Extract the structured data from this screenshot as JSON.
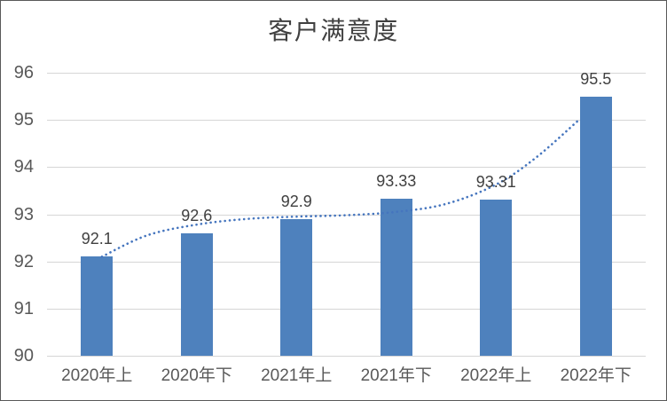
{
  "chart_data": {
    "type": "bar",
    "title": "客户满意度",
    "categories": [
      "2020年上",
      "2020年下",
      "2021年上",
      "2021年下",
      "2022年上",
      "2022年下"
    ],
    "values": [
      92.1,
      92.6,
      92.9,
      93.33,
      93.31,
      95.5
    ],
    "value_labels": [
      "92.1",
      "92.6",
      "92.9",
      "93.33",
      "93.31",
      "95.5"
    ],
    "ylim": [
      90,
      96
    ],
    "yticks": [
      "90",
      "91",
      "92",
      "93",
      "94",
      "95",
      "96"
    ],
    "grid": true,
    "legend": "none",
    "bar_color": "#4e81bd",
    "gridline_color": "#d6d6d6",
    "axis_text_color": "#595959",
    "label_text_color": "#404040",
    "trendline": {
      "style": "dotted",
      "color": "#4575be",
      "points": [
        [
          0.05,
          92.1
        ],
        [
          0.5,
          92.55
        ],
        [
          1.0,
          92.78
        ],
        [
          1.5,
          92.9
        ],
        [
          2.0,
          92.95
        ],
        [
          2.5,
          92.98
        ],
        [
          3.0,
          93.05
        ],
        [
          3.5,
          93.22
        ],
        [
          4.0,
          93.63
        ],
        [
          4.4,
          94.2
        ],
        [
          4.82,
          94.98
        ]
      ]
    }
  }
}
